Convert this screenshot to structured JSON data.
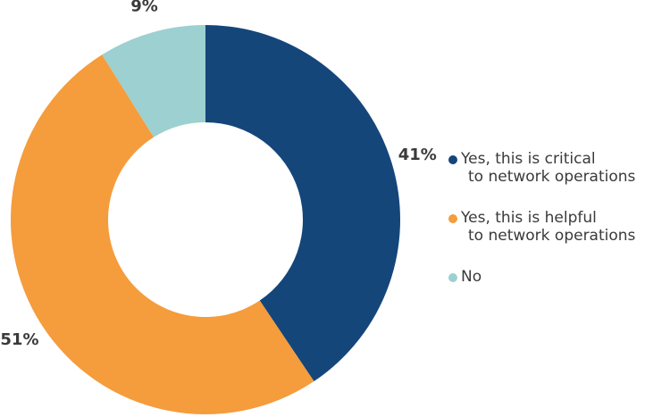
{
  "chart_data": {
    "type": "pie",
    "donut": true,
    "categories": [
      "Yes, this is critical to network operations",
      "Yes, this is helpful to network operations",
      "No"
    ],
    "values": [
      41,
      51,
      9
    ],
    "labels": [
      "41%",
      "51%",
      "9%"
    ],
    "colors": [
      "#14467a",
      "#f59c3c",
      "#9dd0d0"
    ],
    "legend": {
      "placement": "right",
      "items": [
        {
          "line1": "Yes, this is critical",
          "line2": "to network operations",
          "color": "#14467a"
        },
        {
          "line1": "Yes, this is helpful",
          "line2": "to network operations",
          "color": "#f59c3c"
        },
        {
          "line1": "No",
          "line2": "",
          "color": "#9dd0d0"
        }
      ]
    },
    "title": ""
  }
}
